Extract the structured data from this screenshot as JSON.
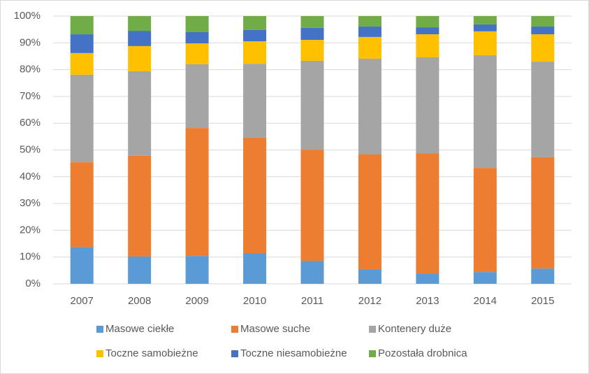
{
  "chart_data": {
    "type": "stacked_bar",
    "categories": [
      "2007",
      "2008",
      "2009",
      "2010",
      "2011",
      "2012",
      "2013",
      "2014",
      "2015"
    ],
    "series": [
      {
        "name": "Masowe ciekłe",
        "color": "#5b9bd5",
        "values": [
          13.8,
          10.2,
          10.4,
          11.5,
          8.6,
          5.5,
          3.9,
          4.4,
          5.7
        ]
      },
      {
        "name": "Masowe suche",
        "color": "#ed7d31",
        "values": [
          31.6,
          37.6,
          47.8,
          43.1,
          41.5,
          42.8,
          44.9,
          38.9,
          41.6
        ]
      },
      {
        "name": "Kontenery duże",
        "color": "#a5a5a5",
        "values": [
          32.7,
          31.6,
          23.8,
          27.6,
          33.2,
          35.8,
          35.8,
          42.1,
          35.7
        ]
      },
      {
        "name": "Toczne samobieżne",
        "color": "#ffc000",
        "values": [
          8.1,
          9.4,
          7.8,
          8.4,
          7.8,
          8.1,
          8.6,
          8.9,
          10.2
        ]
      },
      {
        "name": "Toczne niesamobieżne",
        "color": "#4472c4",
        "values": [
          7.0,
          5.7,
          4.2,
          4.2,
          4.5,
          3.9,
          2.6,
          2.6,
          2.9
        ]
      },
      {
        "name": "Pozostała drobnica",
        "color": "#70ad47",
        "values": [
          6.8,
          5.5,
          6.0,
          5.2,
          4.4,
          3.9,
          4.2,
          3.1,
          3.9
        ]
      }
    ],
    "ylim": [
      0,
      100
    ],
    "yticks": [
      {
        "value": 0,
        "label": "0%"
      },
      {
        "value": 10,
        "label": "10%"
      },
      {
        "value": 20,
        "label": "20%"
      },
      {
        "value": 30,
        "label": "30%"
      },
      {
        "value": 40,
        "label": "40%"
      },
      {
        "value": 50,
        "label": "50%"
      },
      {
        "value": 60,
        "label": "60%"
      },
      {
        "value": 70,
        "label": "70%"
      },
      {
        "value": 80,
        "label": "80%"
      },
      {
        "value": 90,
        "label": "90%"
      },
      {
        "value": 100,
        "label": "100%"
      }
    ],
    "grid": true
  }
}
